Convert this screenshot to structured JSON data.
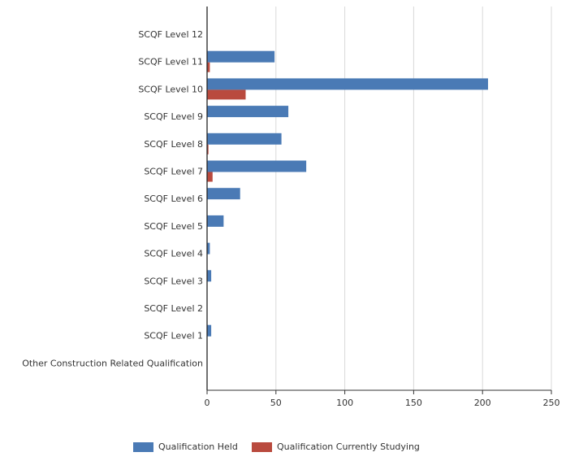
{
  "chart_data": {
    "type": "bar",
    "orientation": "horizontal",
    "categories": [
      "SCQF Level 12",
      "SCQF Level 11",
      "SCQF Level 10",
      "SCQF Level 9",
      "SCQF Level 8",
      "SCQF Level 7",
      "SCQF Level 6",
      "SCQF Level 5",
      "SCQF Level 4",
      "SCQF Level 3",
      "SCQF Level 2",
      "SCQF Level 1",
      "Other Construction Related Qualification"
    ],
    "series": [
      {
        "name": "Qualification Held",
        "color": "#4a7ab5",
        "values": [
          0,
          49,
          204,
          59,
          54,
          72,
          24,
          12,
          2,
          3,
          0,
          3,
          0
        ]
      },
      {
        "name": "Qualification Currently Studying",
        "color": "#b94a3e",
        "values": [
          0,
          2,
          28,
          0,
          1,
          4,
          0,
          0,
          0,
          0,
          0,
          0,
          0
        ]
      }
    ],
    "xlim": [
      0,
      250
    ],
    "xticks": [
      "0",
      "50",
      "100",
      "150",
      "200",
      "250"
    ],
    "grid": true,
    "legend": "bottom"
  }
}
